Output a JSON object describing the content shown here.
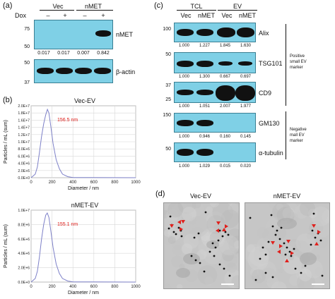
{
  "panel_a": {
    "label": "(a)",
    "dox_label": "Dox",
    "groups": [
      "Vec",
      "nMET"
    ],
    "dox_marks": [
      "–",
      "+",
      "–",
      "+"
    ],
    "markers_top": [
      "75",
      "50"
    ],
    "markers_bottom": [
      "50",
      "37"
    ],
    "protein_top": "nMET",
    "quant": [
      "0.017",
      "0.017",
      "0.007",
      "0.842"
    ],
    "protein_bottom": "β-actin"
  },
  "panel_b": {
    "label": "(b)",
    "charts": [
      {
        "title": "Vec-EV",
        "peak": "156.5 nm"
      },
      {
        "title": "nMET-EV",
        "peak": "155.1 nm"
      }
    ],
    "yticks": [
      "2.0E+7",
      "1.8E+7",
      "1.6E+7",
      "1.4E+7",
      "1.2E+7",
      "1.0E+7",
      "8.0E+6",
      "6.0E+6",
      "4.0E+6",
      "2.0E+6",
      "0.0E+0"
    ],
    "yticks2": [
      "1.0E+7",
      "8.0E+6",
      "6.0E+6",
      "4.0E+6",
      "2.0E+6",
      "0.0E+0"
    ],
    "xticks": [
      "0",
      "200",
      "400",
      "600",
      "800",
      "1000"
    ],
    "ylabel": "Particles / mL (sum)",
    "xlabel": "Diameter / nm",
    "line_color": "#7d80c8"
  },
  "chart_data": [
    {
      "type": "line",
      "title": "Vec-EV",
      "xlabel": "Diameter / nm",
      "ylabel": "Particles / mL (sum)",
      "xlim": [
        0,
        1000
      ],
      "ylim": [
        0,
        20000000
      ],
      "annotation": "156.5 nm",
      "x": [
        0,
        40,
        60,
        80,
        100,
        120,
        140,
        156,
        170,
        190,
        210,
        240,
        270,
        300,
        350,
        400,
        1000
      ],
      "y": [
        0,
        1000000,
        3000000,
        7000000,
        11500000,
        15000000,
        17500000,
        19000000,
        18000000,
        14000000,
        9500000,
        5000000,
        2500000,
        1000000,
        300000,
        50000,
        0
      ]
    },
    {
      "type": "line",
      "title": "nMET-EV",
      "xlabel": "Diameter / nm",
      "ylabel": "Particles / mL (sum)",
      "xlim": [
        0,
        1000
      ],
      "ylim": [
        0,
        10000000
      ],
      "annotation": "155.1 nm",
      "x": [
        0,
        40,
        60,
        80,
        100,
        120,
        140,
        155,
        170,
        190,
        210,
        240,
        270,
        300,
        350,
        400,
        1000
      ],
      "y": [
        0,
        500000,
        1500000,
        3500000,
        6000000,
        8000000,
        9300000,
        9600000,
        9000000,
        7000000,
        4800000,
        2500000,
        1200000,
        500000,
        150000,
        30000,
        0
      ]
    }
  ],
  "panel_c": {
    "label": "(c)",
    "headers": [
      "TCL",
      "EV"
    ],
    "lanes": [
      "Vec",
      "nMET",
      "Vec",
      "nMET"
    ],
    "rows": [
      {
        "protein": "Alix",
        "marker": "100",
        "quant": [
          "1.000",
          "1.227",
          "1.845",
          "1.630"
        ]
      },
      {
        "protein": "TSG101",
        "marker": "50",
        "quant": [
          "1.000",
          "1.300",
          "0.667",
          "0.697"
        ]
      },
      {
        "protein": "CD9",
        "marker": "37",
        "marker2": "25",
        "quant": [
          "1.000",
          "1.051",
          "2.007",
          "1.977"
        ]
      },
      {
        "protein": "GM130",
        "marker": "150",
        "quant": [
          "1.000",
          "0.946",
          "0.160",
          "0.145"
        ]
      },
      {
        "protein": "α-tubulin",
        "marker": "50",
        "quant": [
          "1.000",
          "1.029",
          "0.015",
          "0.020"
        ]
      }
    ],
    "group_pos": "Positive small EV marker",
    "group_pos_lines": [
      "Positive",
      "small EV",
      "marker"
    ],
    "group_neg_lines": [
      "Negative",
      "mall EV",
      "marker"
    ]
  },
  "panel_d": {
    "label": "(d)",
    "titles": [
      "Vec-EV",
      "nMET-EV"
    ],
    "arrow_color": "#e0201c"
  }
}
